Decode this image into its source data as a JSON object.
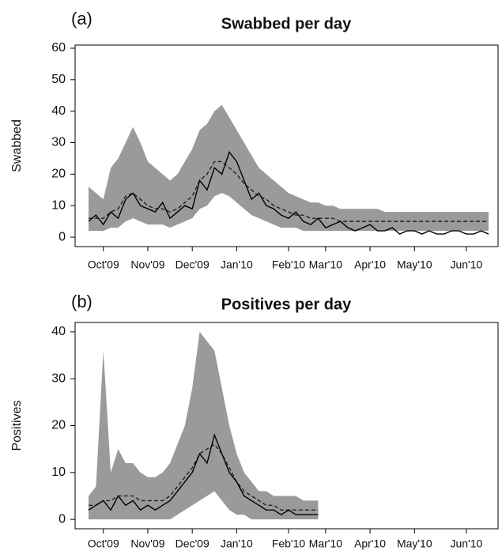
{
  "chart_data": [
    {
      "type": "line",
      "label": "(a)",
      "title": "Swabbed per day",
      "ylabel": "Swabbed",
      "categories": [
        null,
        null,
        "Oct'09",
        null,
        null,
        null,
        null,
        null,
        "Nov'09",
        null,
        null,
        null,
        null,
        null,
        "Dec'09",
        null,
        null,
        null,
        null,
        null,
        "Jan'10",
        null,
        null,
        null,
        null,
        null,
        null,
        "Feb'10",
        null,
        null,
        null,
        null,
        "Mar'10",
        null,
        null,
        null,
        null,
        null,
        "Apr'10",
        null,
        null,
        null,
        null,
        null,
        "May'10",
        null,
        null,
        null,
        null,
        null,
        null,
        "Jun'10",
        null,
        null,
        null
      ],
      "ylim": [
        -3,
        61
      ],
      "yticks": [
        0,
        10,
        20,
        30,
        40,
        50,
        60
      ],
      "band": {
        "color": "#9a9a9a",
        "upper": [
          16,
          14,
          12,
          22,
          25,
          30,
          35,
          30,
          24,
          22,
          20,
          18,
          20,
          24,
          28,
          34,
          36,
          40,
          42,
          38,
          34,
          30,
          26,
          22,
          20,
          18,
          16,
          14,
          13,
          12,
          11,
          11,
          10,
          10,
          9,
          9,
          9,
          9,
          9,
          9,
          8,
          8,
          8,
          8,
          8,
          8,
          8,
          8,
          8,
          8,
          8,
          8,
          8,
          8,
          8
        ],
        "lower": [
          2,
          2,
          2,
          3,
          3,
          5,
          6,
          5,
          4,
          4,
          4,
          3,
          4,
          5,
          6,
          9,
          10,
          13,
          14,
          13,
          11,
          9,
          7,
          6,
          5,
          4,
          3,
          3,
          3,
          2,
          2,
          2,
          2,
          2,
          2,
          2,
          2,
          2,
          2,
          2,
          2,
          2,
          2,
          2,
          2,
          2,
          2,
          2,
          2,
          2,
          2,
          2,
          2,
          2,
          2
        ]
      },
      "series": [
        {
          "color": "#222222",
          "dash": true,
          "values": [
            6,
            6,
            6,
            8,
            9,
            13,
            14,
            12,
            10,
            9,
            9,
            8,
            9,
            11,
            13,
            18,
            20,
            24,
            24,
            22,
            20,
            17,
            15,
            13,
            12,
            10,
            9,
            8,
            7,
            7,
            6,
            6,
            6,
            6,
            5,
            5,
            5,
            5,
            5,
            5,
            5,
            5,
            5,
            5,
            5,
            5,
            5,
            5,
            5,
            5,
            5,
            5,
            5,
            5,
            5
          ]
        },
        {
          "color": "#000000",
          "dash": false,
          "values": [
            5,
            7,
            4,
            8,
            6,
            12,
            14,
            10,
            9,
            8,
            11,
            6,
            8,
            10,
            9,
            18,
            15,
            22,
            20,
            27,
            24,
            18,
            12,
            14,
            10,
            9,
            7,
            6,
            8,
            5,
            4,
            6,
            3,
            4,
            5,
            3,
            2,
            3,
            4,
            2,
            2,
            3,
            1,
            2,
            2,
            1,
            2,
            1,
            1,
            2,
            2,
            1,
            1,
            2,
            1
          ]
        }
      ]
    },
    {
      "type": "line",
      "label": "(b)",
      "title": "Positives per day",
      "ylabel": "Positives",
      "categories": [
        null,
        null,
        "Oct'09",
        null,
        null,
        null,
        null,
        null,
        "Nov'09",
        null,
        null,
        null,
        null,
        null,
        "Dec'09",
        null,
        null,
        null,
        null,
        null,
        "Jan'10",
        null,
        null,
        null,
        null,
        null,
        null,
        "Feb'10",
        null,
        null,
        null,
        null,
        "Mar'10",
        null,
        null,
        null,
        null,
        null,
        "Apr'10",
        null,
        null,
        null,
        null,
        null,
        "May'10",
        null,
        null,
        null,
        null,
        null,
        null,
        "Jun'10",
        null,
        null,
        null
      ],
      "ylim": [
        -2,
        42
      ],
      "yticks": [
        0,
        10,
        20,
        30,
        40
      ],
      "band": {
        "color": "#9a9a9a",
        "upper": [
          5,
          7,
          36,
          10,
          15,
          12,
          12,
          10,
          9,
          9,
          10,
          12,
          16,
          20,
          28,
          40,
          38,
          36,
          28,
          20,
          14,
          10,
          8,
          6,
          6,
          5,
          5,
          5,
          5,
          4,
          4,
          4,
          null,
          null,
          null,
          null,
          null,
          null,
          null,
          null,
          null,
          null,
          null,
          null,
          null,
          null,
          null,
          null,
          null,
          null,
          null,
          null,
          null,
          null,
          null
        ],
        "lower": [
          0,
          0,
          0,
          0,
          0,
          0,
          0,
          0,
          0,
          0,
          0,
          0,
          1,
          2,
          3,
          4,
          5,
          6,
          4,
          2,
          1,
          1,
          0,
          0,
          0,
          0,
          0,
          0,
          0,
          0,
          0,
          0,
          null,
          null,
          null,
          null,
          null,
          null,
          null,
          null,
          null,
          null,
          null,
          null,
          null,
          null,
          null,
          null,
          null,
          null,
          null,
          null,
          null,
          null,
          null
        ]
      },
      "series": [
        {
          "color": "#222222",
          "dash": true,
          "values": [
            3,
            3,
            4,
            4,
            5,
            5,
            5,
            4,
            4,
            4,
            4,
            5,
            7,
            9,
            11,
            14,
            15,
            16,
            14,
            11,
            8,
            6,
            5,
            4,
            3,
            3,
            2,
            2,
            2,
            2,
            2,
            2,
            null,
            null,
            null,
            null,
            null,
            null,
            null,
            null,
            null,
            null,
            null,
            null,
            null,
            null,
            null,
            null,
            null,
            null,
            null,
            null,
            null,
            null,
            null
          ]
        },
        {
          "color": "#000000",
          "dash": false,
          "values": [
            2,
            3,
            4,
            2,
            5,
            3,
            4,
            2,
            3,
            2,
            3,
            4,
            6,
            8,
            10,
            14,
            12,
            18,
            14,
            10,
            8,
            5,
            4,
            3,
            2,
            2,
            1,
            2,
            1,
            1,
            1,
            1,
            null,
            null,
            null,
            null,
            null,
            null,
            null,
            null,
            null,
            null,
            null,
            null,
            null,
            null,
            null,
            null,
            null,
            null,
            null,
            null,
            null,
            null,
            null
          ]
        }
      ]
    }
  ]
}
